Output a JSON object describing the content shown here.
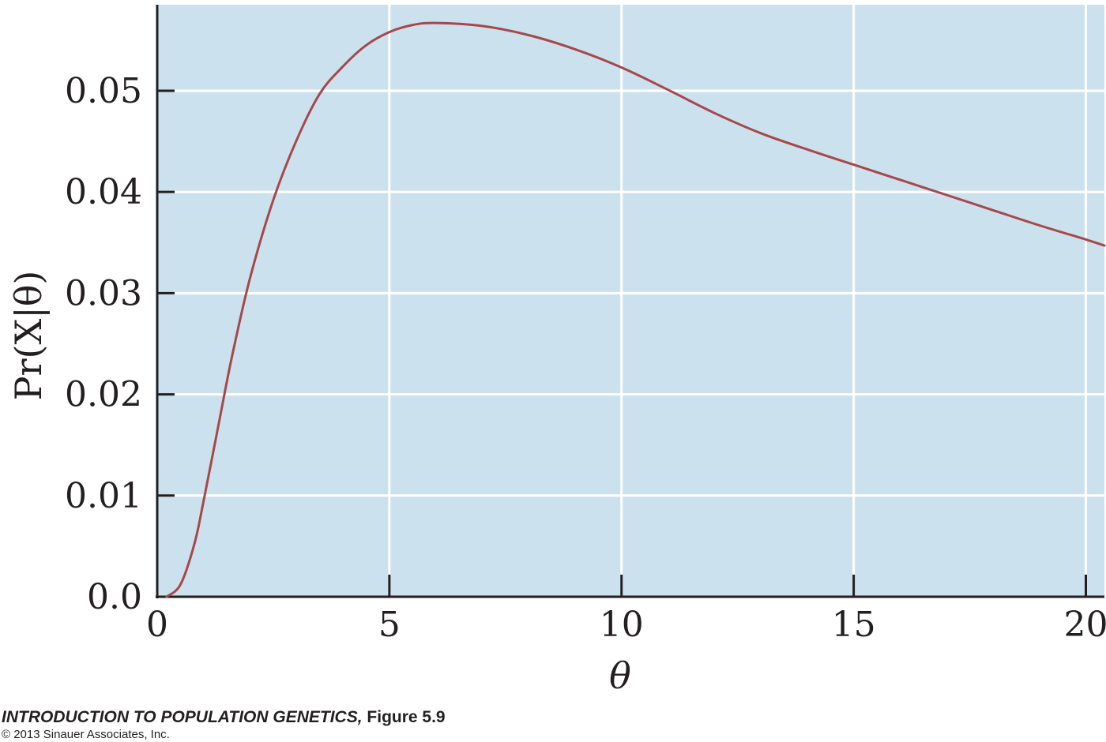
{
  "chart_data": {
    "type": "line",
    "title": "",
    "xlabel": "θ",
    "ylabel": "Pr(X|θ)",
    "xlim": [
      0,
      20.4
    ],
    "ylim": [
      0,
      0.0585
    ],
    "xticks": [
      0,
      5,
      10,
      15,
      20
    ],
    "xtick_labels": [
      "0",
      "5",
      "10",
      "15",
      "20"
    ],
    "yticks": [
      0,
      0.01,
      0.02,
      0.03,
      0.04,
      0.05
    ],
    "ytick_labels": [
      "0.0",
      "0.01",
      "0.02",
      "0.03",
      "0.04",
      "0.05"
    ],
    "grid": true,
    "legend": "none",
    "colors": {
      "plot_background": "#cce1ee",
      "grid": "#ffffff",
      "line": "#a6484a",
      "text": "#231f20"
    },
    "series": [
      {
        "x": [
          0.2,
          0.5,
          0.8,
          1.0,
          1.3,
          1.6,
          2.0,
          2.5,
          3.0,
          3.5,
          4.0,
          4.5,
          5.0,
          5.5,
          6.0,
          7.0,
          8.0,
          9.0,
          10.0,
          11.0,
          12.0,
          13.0,
          14.0,
          15.0,
          16.0,
          17.0,
          18.0,
          19.0,
          20.0,
          20.4
        ],
        "y": [
          0.0,
          0.0012,
          0.0052,
          0.0095,
          0.0165,
          0.0235,
          0.0315,
          0.0392,
          0.0451,
          0.0497,
          0.0524,
          0.0545,
          0.0558,
          0.0565,
          0.0567,
          0.0564,
          0.0555,
          0.0541,
          0.0523,
          0.0501,
          0.0478,
          0.0458,
          0.0442,
          0.0427,
          0.0412,
          0.0397,
          0.0382,
          0.0367,
          0.0353,
          0.0347
        ]
      }
    ]
  },
  "caption": {
    "book_title": "INTRODUCTION TO POPULATION GENETICS,",
    "figure_label": " Figure 5.9",
    "copyright": "© 2013 Sinauer Associates, Inc."
  }
}
